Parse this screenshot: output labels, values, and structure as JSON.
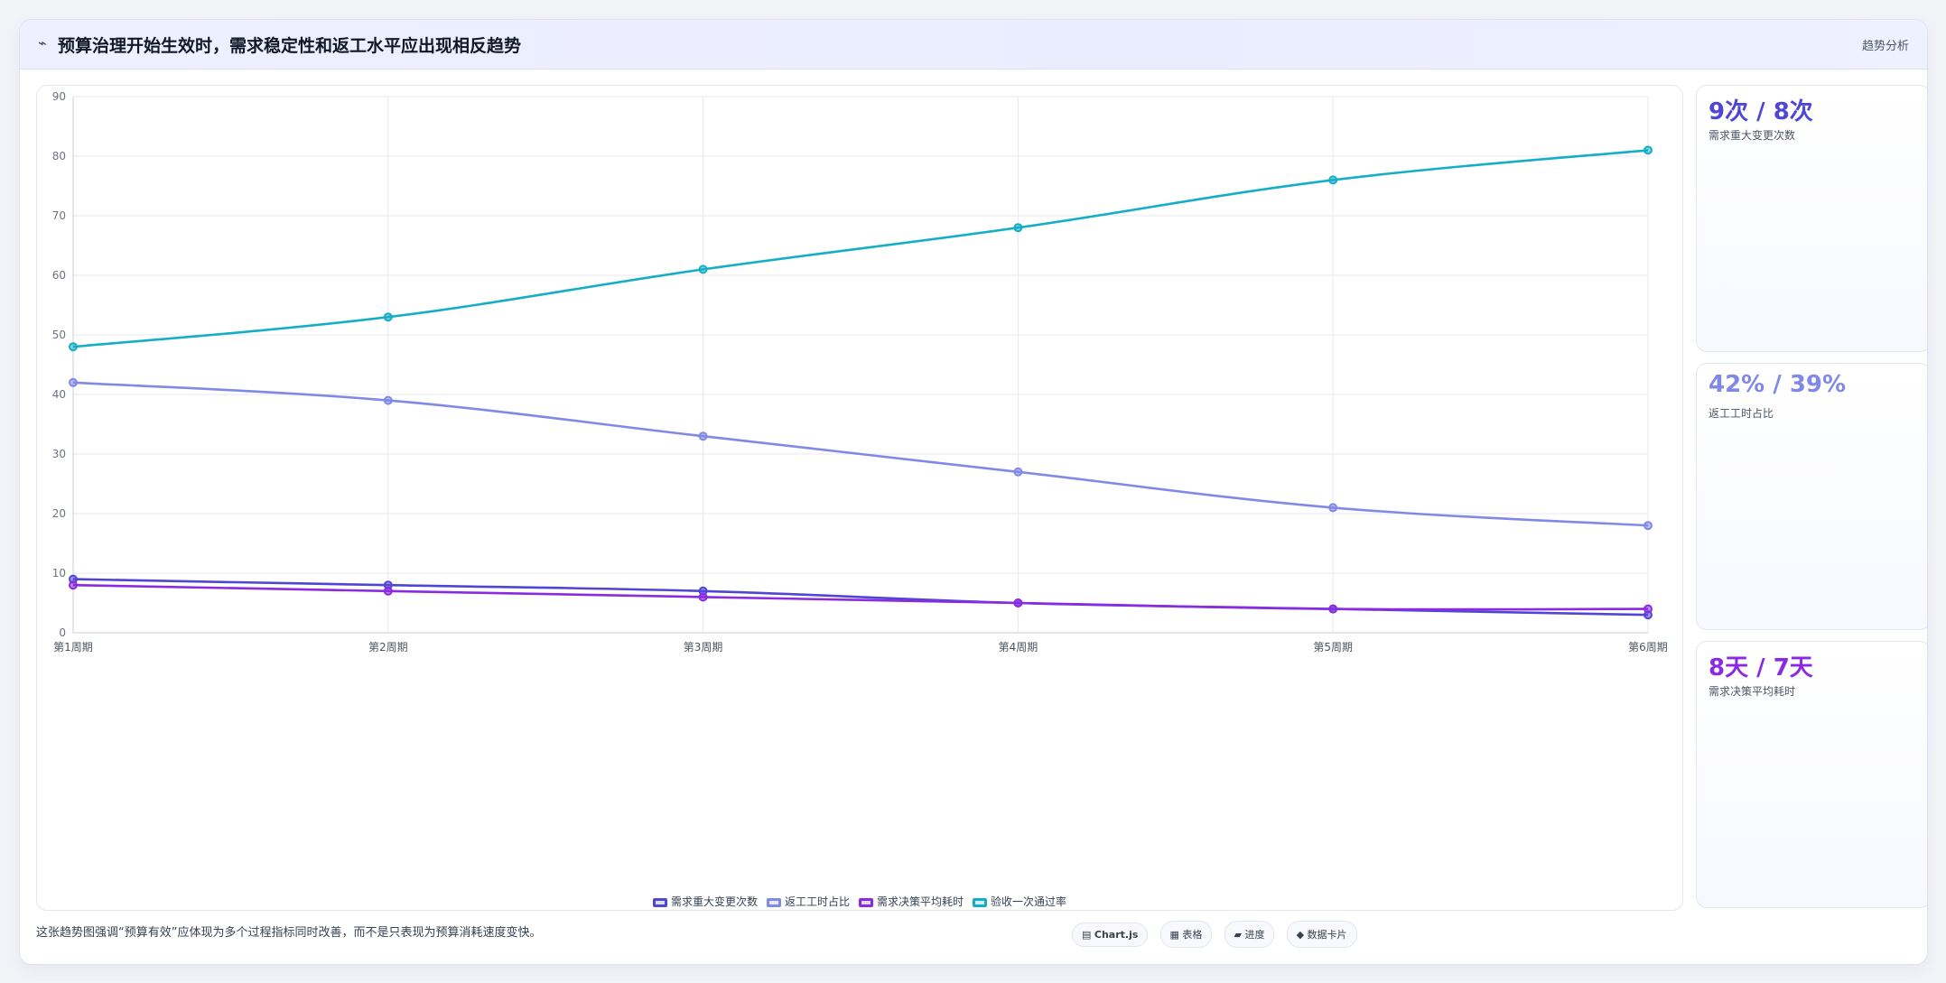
{
  "header": {
    "icon": "⌁",
    "title": "预算治理开始生效时，需求稳定性和返工水平应出现相反趋势",
    "tag": "趋势分析"
  },
  "kpis": [
    {
      "value": "9次 / 8次",
      "label": "需求重大变更次数",
      "color": "#5046d4"
    },
    {
      "value": "42% / 39%",
      "label": "返工工时占比",
      "color": "#8189e6"
    },
    {
      "value": "8天 / 7天",
      "label": "需求决策平均耗时",
      "color": "#8a2be2"
    }
  ],
  "note": "这张趋势图强调“预算有效”应体现为多个过程指标同时改善，而不是只表现为预算消耗速度变快。",
  "toolbar": [
    {
      "icon": "▤",
      "label": "Chart.js"
    },
    {
      "icon": "▦",
      "label": "表格"
    },
    {
      "icon": "▰",
      "label": "进度"
    },
    {
      "icon": "◆",
      "label": "数据卡片"
    }
  ],
  "chart_data": {
    "type": "line",
    "categories": [
      "第1周期",
      "第2周期",
      "第3周期",
      "第4周期",
      "第5周期",
      "第6周期"
    ],
    "ylim": [
      0,
      90
    ],
    "yticks": [
      0,
      10,
      20,
      30,
      40,
      50,
      60,
      70,
      80,
      90
    ],
    "grid": true,
    "legend_position": "bottom",
    "series": [
      {
        "name": "需求重大变更次数",
        "color": "#5046d4",
        "values": [
          9,
          8,
          7,
          5,
          4,
          3
        ]
      },
      {
        "name": "返工工时占比",
        "color": "#8189e6",
        "values": [
          42,
          39,
          33,
          27,
          21,
          18
        ]
      },
      {
        "name": "需求决策平均耗时",
        "color": "#8a2be2",
        "values": [
          8,
          7,
          6,
          5,
          4,
          4
        ]
      },
      {
        "name": "验收一次通过率",
        "color": "#16aec6",
        "values": [
          48,
          53,
          61,
          68,
          76,
          81
        ]
      }
    ]
  }
}
